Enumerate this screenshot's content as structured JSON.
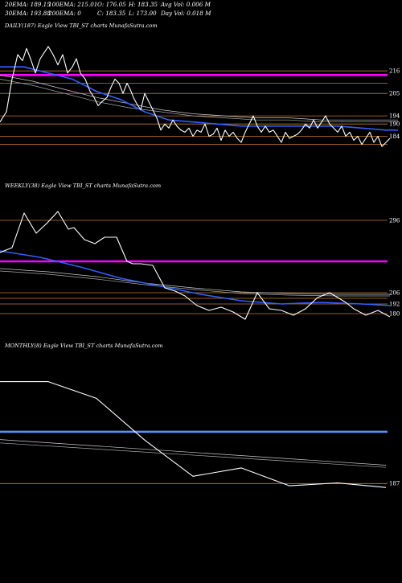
{
  "header": {
    "row1": {
      "ema20": "20EMA: 189.15",
      "ema100": "100EMA: 215.01",
      "open": "O: 176.05",
      "high": "H: 183.35",
      "avg_vol": "Avg Vol: 0.006  M"
    },
    "row2": {
      "ema30": "30EMA: 193.88",
      "ema200": "200EMA: 0",
      "close": "C: 183.35",
      "low": "L: 173.00",
      "day_vol": "Day Vol: 0.018  M"
    }
  },
  "colors": {
    "background": "#000000",
    "price": "#ffffff",
    "ema_fast": "#2f5fff",
    "ema_slow": "#cccccc",
    "level_line": "#ff00ff",
    "monthly_level": "#5b8ff5",
    "orange_level": "#c87a2a"
  },
  "chart_data": [
    {
      "type": "line",
      "title": "DAILY(187) Eagle   View  TBI_ST charts MunafaSutra.com",
      "ylim": [
        170,
        235
      ],
      "right_labels": [
        "216",
        "205",
        "194",
        "190",
        "184"
      ],
      "horizontal_levels": [
        {
          "value": 216,
          "color": "#c87a2a"
        },
        {
          "value": 210,
          "color": "#c87a2a"
        },
        {
          "value": 205,
          "color": "#c87a2a"
        },
        {
          "value": 194,
          "color": "#c87a2a"
        },
        {
          "value": 190,
          "color": "#c87a2a"
        },
        {
          "value": 184,
          "color": "#c87a2a"
        },
        {
          "value": 180,
          "color": "#c87a2a"
        }
      ],
      "highlight_level": {
        "value": 214,
        "color": "#ff00ff"
      },
      "series": [
        {
          "role": "price",
          "color": "#ffffff",
          "x": [
            0,
            8,
            15,
            22,
            28,
            33,
            38,
            44,
            50,
            55,
            60,
            66,
            72,
            78,
            84,
            90,
            95,
            100,
            106,
            112,
            117,
            122,
            127,
            133,
            138,
            143,
            148,
            153,
            158,
            162,
            166,
            170,
            175,
            180,
            185,
            190,
            195,
            200,
            205,
            210,
            215,
            220,
            225,
            230,
            235,
            240,
            245,
            250,
            255,
            260,
            265,
            270,
            275,
            280,
            285,
            290,
            295,
            300,
            305,
            310,
            315,
            320,
            325,
            330,
            335,
            340,
            345,
            350,
            355,
            360,
            365,
            370,
            375,
            380,
            385,
            390,
            395,
            400,
            405,
            410,
            415,
            420,
            425,
            430,
            435,
            440,
            445,
            450,
            455,
            460,
            465,
            470,
            475,
            480,
            485
          ],
          "values": [
            191,
            196,
            212,
            224,
            221,
            227,
            222,
            215,
            222,
            225,
            228,
            224,
            219,
            224,
            215,
            218,
            222,
            215,
            212,
            206,
            203,
            199,
            201,
            203,
            208,
            212,
            210,
            205,
            210,
            207,
            203,
            200,
            197,
            205,
            201,
            197,
            193,
            187,
            190,
            188,
            192,
            189,
            187,
            186,
            188,
            184,
            187,
            186,
            190,
            184,
            185,
            188,
            182,
            187,
            184,
            186,
            183,
            181,
            186,
            190,
            194,
            189,
            186,
            189,
            186,
            187,
            184,
            181,
            186,
            183,
            184,
            185,
            187,
            190,
            188,
            192,
            188,
            191,
            194,
            190,
            188,
            186,
            189,
            184,
            186,
            182,
            184,
            180,
            183,
            186,
            181,
            184,
            179,
            181,
            183
          ]
        },
        {
          "role": "ema_fast",
          "color": "#2f5fff",
          "x": [
            0,
            30,
            60,
            90,
            120,
            150,
            180,
            210,
            240,
            270,
            300,
            330,
            360,
            390,
            420,
            450,
            480,
            495
          ],
          "values": [
            218,
            218,
            215,
            212,
            206,
            202,
            196,
            192,
            191,
            190,
            189,
            189,
            189,
            189,
            189,
            188,
            187,
            187
          ]
        },
        {
          "role": "ema_slow_1",
          "color": "#cccccc",
          "x": [
            0,
            40,
            80,
            120,
            160,
            200,
            240,
            280,
            320,
            360,
            400,
            440,
            480,
            495
          ],
          "values": [
            214,
            211,
            207,
            203,
            200,
            197,
            195,
            194,
            193,
            193,
            192,
            192,
            192,
            192
          ]
        },
        {
          "role": "ema_slow_2",
          "color": "#aaaaaa",
          "x": [
            0,
            40,
            80,
            120,
            160,
            200,
            240,
            280,
            320,
            360,
            400,
            440,
            480,
            495
          ],
          "values": [
            212,
            209,
            205,
            201,
            198,
            196,
            194,
            193,
            192,
            192,
            191,
            191,
            191,
            191
          ]
        }
      ]
    },
    {
      "type": "line",
      "title": "WEEKLY(38) Eagle   View  TBI_ST charts MunafaSutra.com",
      "ylim": [
        165,
        330
      ],
      "right_labels": [
        "296",
        "206",
        "192",
        "180"
      ],
      "horizontal_levels": [
        {
          "value": 296,
          "color": "#c87a2a"
        },
        {
          "value": 206,
          "color": "#c87a2a"
        },
        {
          "value": 199,
          "color": "#c87a2a"
        },
        {
          "value": 192,
          "color": "#c87a2a"
        },
        {
          "value": 180,
          "color": "#c87a2a"
        }
      ],
      "highlight_level": {
        "value": 245,
        "color": "#ff00ff"
      },
      "series": [
        {
          "role": "price",
          "color": "#ffffff",
          "x": [
            0,
            15,
            30,
            45,
            58,
            72,
            85,
            92,
            105,
            118,
            130,
            145,
            158,
            165,
            175,
            190,
            205,
            218,
            230,
            245,
            260,
            275,
            290,
            305,
            320,
            335,
            350,
            365,
            380,
            395,
            410,
            420,
            430,
            440,
            455,
            470,
            485
          ],
          "values": [
            256,
            262,
            305,
            280,
            292,
            307,
            285,
            287,
            272,
            267,
            275,
            275,
            245,
            242,
            242,
            240,
            212,
            208,
            202,
            190,
            184,
            188,
            182,
            173,
            206,
            186,
            184,
            178,
            186,
            200,
            206,
            200,
            194,
            186,
            178,
            184,
            176
          ]
        },
        {
          "role": "ema_fast",
          "color": "#2f5fff",
          "x": [
            0,
            50,
            100,
            150,
            200,
            250,
            300,
            350,
            400,
            450,
            485
          ],
          "values": [
            258,
            250,
            238,
            224,
            214,
            204,
            196,
            192,
            194,
            192,
            190
          ]
        },
        {
          "role": "ema_slow_1",
          "color": "#cccccc",
          "x": [
            0,
            60,
            120,
            180,
            240,
            300,
            360,
            420,
            485
          ],
          "values": [
            236,
            232,
            226,
            218,
            212,
            207,
            205,
            204,
            204
          ]
        },
        {
          "role": "ema_slow_2",
          "color": "#aaaaaa",
          "x": [
            0,
            60,
            120,
            180,
            240,
            300,
            360,
            420,
            485
          ],
          "values": [
            233,
            229,
            223,
            216,
            210,
            205,
            203,
            202,
            202
          ]
        }
      ]
    },
    {
      "type": "line",
      "title": "MONTHLY(8) Eagle   View  TBI_ST charts MunafaSutra.com",
      "ylim": [
        160,
        420
      ],
      "right_labels": [
        "187"
      ],
      "horizontal_levels": [
        {
          "value": 187,
          "color": "#c87a2a"
        }
      ],
      "highlight_level": {
        "value": 280,
        "color": "#5b8ff5"
      },
      "series": [
        {
          "role": "price",
          "color": "#ffffff",
          "x": [
            0,
            60,
            120,
            180,
            240,
            300,
            360,
            420,
            480
          ],
          "values": [
            370,
            370,
            340,
            265,
            200,
            215,
            183,
            188,
            180
          ]
        },
        {
          "role": "ema_slow_1",
          "color": "#cccccc",
          "x": [
            0,
            480
          ],
          "values": [
            266,
            220
          ]
        },
        {
          "role": "ema_slow_2",
          "color": "#aaaaaa",
          "x": [
            0,
            480
          ],
          "values": [
            260,
            216
          ]
        }
      ]
    }
  ]
}
